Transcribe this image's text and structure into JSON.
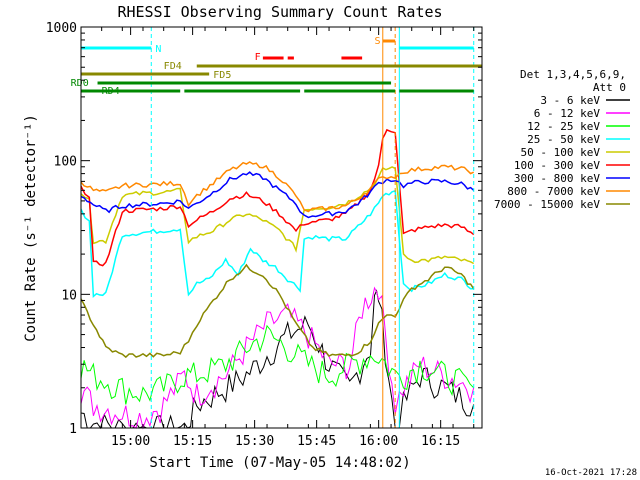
{
  "chart_data": {
    "type": "line",
    "title": "RHESSI Observing Summary Count Rates",
    "xlabel": "Start Time (07-May-05 14:48:02)",
    "ylabel": "Count Rate (s⁻¹ detector⁻¹)",
    "ylog": true,
    "ylim": [
      1,
      1000
    ],
    "xlim_minutes_after_start": [
      0,
      97
    ],
    "x_tick_labels": [
      "15:00",
      "15:15",
      "15:30",
      "15:45",
      "16:00",
      "16:15"
    ],
    "x_tick_minutes": [
      12,
      27,
      42,
      57,
      72,
      87
    ],
    "y_tick_labels": [
      "1",
      "10",
      "100",
      "1000"
    ],
    "y_tick_values": [
      1,
      10,
      100,
      1000
    ],
    "grid": false,
    "legend_position": "right",
    "legend_header": [
      "Det 1,3,4,5,6,9,",
      "Att 0"
    ],
    "footer_timestamp": "16-Oct-2021 17:28",
    "series": [
      {
        "name": "3 - 6 keV",
        "color": "#000000",
        "x": [
          0,
          3,
          10,
          15,
          20,
          25,
          28,
          35,
          40,
          45,
          50,
          55,
          60,
          65,
          70,
          71,
          72,
          76,
          78,
          82,
          88,
          95
        ],
        "values": [
          1.3,
          1.1,
          1.0,
          1.0,
          1.0,
          1.0,
          1.5,
          2.0,
          2.5,
          3.5,
          5.0,
          6.0,
          3.0,
          2.0,
          4.0,
          9.0,
          10.0,
          1.0,
          1.5,
          2.5,
          2.0,
          1.5
        ]
      },
      {
        "name": "6 - 12 keV",
        "color": "#ff00ff",
        "x": [
          0,
          3,
          10,
          15,
          20,
          25,
          28,
          35,
          40,
          45,
          50,
          55,
          60,
          65,
          68,
          71,
          72,
          76,
          78,
          82,
          88,
          95
        ],
        "values": [
          2.0,
          1.5,
          1.3,
          1.2,
          1.5,
          2.5,
          1.8,
          2.5,
          4.0,
          6.0,
          7.0,
          5.0,
          3.0,
          3.0,
          8.0,
          11.0,
          12.0,
          1.5,
          2.0,
          3.0,
          2.5,
          2.0
        ]
      },
      {
        "name": "12 - 25 keV",
        "color": "#00ff00",
        "x": [
          0,
          3,
          10,
          15,
          20,
          25,
          28,
          35,
          40,
          45,
          50,
          55,
          60,
          65,
          70,
          72,
          76,
          78,
          82,
          88,
          95
        ],
        "values": [
          3.0,
          2.5,
          2.0,
          1.8,
          2.0,
          2.5,
          2.5,
          3.0,
          4.0,
          5.0,
          4.0,
          3.0,
          2.5,
          3.0,
          3.5,
          3.5,
          2.5,
          2.5,
          3.0,
          2.5,
          2.0
        ]
      },
      {
        "name": "25 - 50 keV",
        "color": "#00ffff",
        "x": [
          0,
          2,
          3,
          6,
          10,
          15,
          20,
          24,
          26,
          28,
          31,
          35,
          38,
          41,
          44,
          47,
          50,
          53,
          54,
          56,
          60,
          64,
          67,
          70,
          72,
          73,
          76,
          78,
          80,
          84,
          88,
          92,
          95
        ],
        "values": [
          42,
          36,
          10,
          10,
          28,
          29,
          30,
          31,
          10,
          12,
          13,
          18,
          14,
          22,
          18,
          16,
          13,
          11,
          26,
          27,
          26,
          26,
          32,
          40,
          48,
          55,
          60,
          12,
          11,
          12,
          14,
          13,
          11
        ]
      },
      {
        "name": "50 - 100 keV",
        "color": "#cccc00",
        "x": [
          0,
          2,
          3,
          6,
          10,
          15,
          20,
          24,
          26,
          28,
          32,
          36,
          40,
          44,
          48,
          52,
          54,
          56,
          60,
          64,
          67,
          70,
          72,
          73,
          76,
          78,
          80,
          84,
          88,
          92,
          95
        ],
        "values": [
          58,
          50,
          25,
          25,
          55,
          57,
          58,
          60,
          25,
          27,
          30,
          36,
          40,
          36,
          30,
          22,
          43,
          44,
          45,
          48,
          54,
          62,
          75,
          85,
          90,
          20,
          18,
          18,
          19,
          18,
          17
        ]
      },
      {
        "name": "100 - 300 keV",
        "color": "#ff0000",
        "x": [
          0,
          2,
          3,
          6,
          10,
          15,
          20,
          24,
          26,
          28,
          32,
          36,
          40,
          44,
          48,
          52,
          54,
          56,
          60,
          64,
          67,
          70,
          72,
          73,
          74,
          76,
          78,
          80,
          84,
          88,
          92,
          95
        ],
        "values": [
          62,
          55,
          17,
          17,
          42,
          43,
          44,
          46,
          33,
          36,
          42,
          52,
          56,
          50,
          40,
          30,
          34,
          35,
          36,
          40,
          48,
          60,
          90,
          150,
          175,
          160,
          28,
          30,
          32,
          33,
          32,
          28
        ]
      },
      {
        "name": "300 - 800 keV",
        "color": "#0000ff",
        "x": [
          0,
          3,
          6,
          10,
          15,
          20,
          24,
          26,
          28,
          32,
          36,
          40,
          44,
          48,
          52,
          54,
          56,
          60,
          64,
          67,
          70,
          72,
          74,
          76,
          78,
          80,
          84,
          88,
          92,
          95
        ],
        "values": [
          55,
          47,
          42,
          46,
          47,
          48,
          50,
          44,
          48,
          58,
          72,
          80,
          75,
          60,
          48,
          38,
          39,
          40,
          42,
          48,
          58,
          68,
          72,
          72,
          65,
          68,
          70,
          70,
          67,
          60
        ]
      },
      {
        "name": "800 - 7000 keV",
        "color": "#ff8800",
        "x": [
          0,
          3,
          6,
          10,
          15,
          20,
          24,
          26,
          28,
          32,
          36,
          40,
          44,
          48,
          52,
          54,
          56,
          60,
          64,
          67,
          70,
          72,
          74,
          76,
          78,
          80,
          84,
          88,
          92,
          95
        ],
        "values": [
          70,
          60,
          58,
          65,
          66,
          67,
          68,
          48,
          55,
          68,
          85,
          95,
          92,
          75,
          55,
          42,
          43,
          44,
          46,
          52,
          62,
          72,
          76,
          76,
          83,
          85,
          88,
          90,
          87,
          82
        ]
      },
      {
        "name": "7000 - 15000 keV",
        "color": "#888800",
        "x": [
          0,
          3,
          6,
          10,
          15,
          20,
          24,
          26,
          28,
          32,
          36,
          40,
          44,
          48,
          52,
          56,
          60,
          64,
          67,
          70,
          72,
          74,
          76,
          78,
          80,
          84,
          88,
          92,
          95
        ],
        "values": [
          9,
          6,
          4,
          3.5,
          3.5,
          3.5,
          3.7,
          4.5,
          6,
          9,
          13,
          16,
          14,
          10,
          6,
          4,
          3.5,
          3.5,
          3.7,
          4.5,
          6,
          7,
          7,
          9,
          11,
          13,
          16,
          14,
          11
        ]
      }
    ],
    "annotations": {
      "N_label": "N",
      "S_label": "S",
      "F_label": "F",
      "FD4_label": "FD4",
      "FD5_label": "FD5",
      "RD0_label": "RD0",
      "RD4_label": "RD4",
      "N_segments_min": [
        [
          0,
          17
        ],
        [
          77,
          95
        ]
      ],
      "S_segment_min": [
        73,
        76
      ],
      "F_segments_min": [
        [
          44,
          49
        ],
        [
          50,
          51.5
        ],
        [
          63,
          68
        ]
      ],
      "FD4_segment_min": [
        28,
        97
      ],
      "FD5_segment_min": [
        0,
        31
      ],
      "RD0_segment_min": [
        4,
        75
      ],
      "RD4_segments_min": [
        [
          0,
          24
        ],
        [
          25,
          53
        ],
        [
          54,
          76
        ],
        [
          77,
          95
        ]
      ],
      "vertical_lines_min": [
        {
          "t": 0,
          "color": "#00ffff"
        },
        {
          "t": 17,
          "color": "#00ffff",
          "dashed": true
        },
        {
          "t": 73,
          "color": "#ff8800"
        },
        {
          "t": 76,
          "color": "#ff8800",
          "dashed": true
        },
        {
          "t": 77,
          "color": "#00ffff"
        },
        {
          "t": 95,
          "color": "#00ffff",
          "dashed": true
        }
      ]
    }
  }
}
